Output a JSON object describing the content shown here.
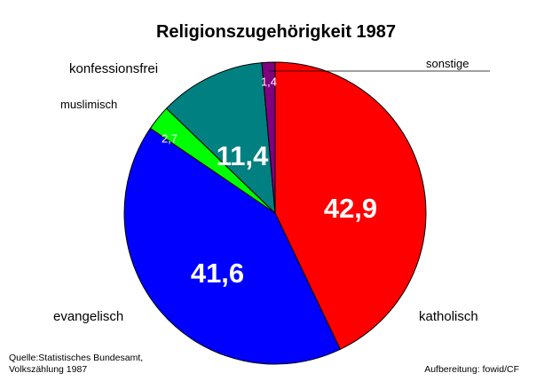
{
  "chart_data": {
    "type": "pie",
    "title": "Religionszugehörigkeit 1987",
    "unit": "%",
    "slices": [
      {
        "name": "katholisch",
        "value": 42.9,
        "value_label": "42,9",
        "color": "#ff0000"
      },
      {
        "name": "evangelisch",
        "value": 41.6,
        "value_label": "41,6",
        "color": "#0000ff"
      },
      {
        "name": "muslimisch",
        "value": 2.7,
        "value_label": "2,7",
        "color": "#00ff00"
      },
      {
        "name": "konfessionsfrei",
        "value": 11.4,
        "value_label": "11,4",
        "color": "#008080"
      },
      {
        "name": "sonstige",
        "value": 1.4,
        "value_label": "1,4",
        "color": "#800080"
      }
    ],
    "start_angle_deg": 0,
    "direction": "clockwise"
  },
  "notes": {
    "source_line1": "Quelle:Statistisches Bundesamt,",
    "source_line2": "Volkszählung 1987",
    "credit": "Aufbereitung: fowid/CF"
  }
}
